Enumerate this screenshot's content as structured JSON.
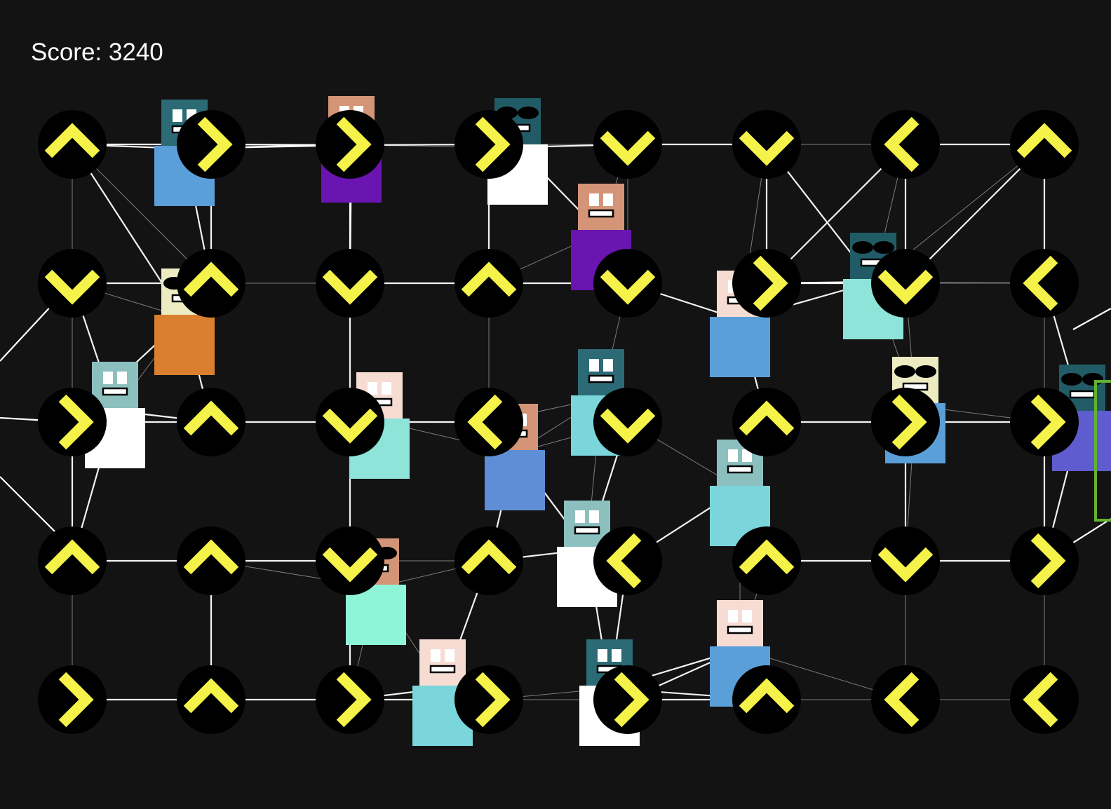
{
  "hud": {
    "score_label": "Score: ",
    "score_value": "3240"
  },
  "colors": {
    "background": "#131313",
    "button_fill": "#000000",
    "arrow": "#f5f249",
    "link": "#ffffff",
    "goal_border": "#63b22e"
  },
  "grid": {
    "rows": 5,
    "cols": 8,
    "arrows": [
      [
        "up",
        "right",
        "right",
        "right",
        "down",
        "down",
        "left",
        "up"
      ],
      [
        "down",
        "up",
        "down",
        "up",
        "down",
        "right",
        "down",
        "left"
      ],
      [
        "right",
        "up",
        "down",
        "left",
        "down",
        "up",
        "right",
        "right"
      ],
      [
        "up",
        "up",
        "down",
        "up",
        "left",
        "up",
        "down",
        "right"
      ],
      [
        "right",
        "up",
        "right",
        "right",
        "right",
        "up",
        "left",
        "left"
      ]
    ]
  },
  "characters": [
    {
      "id": "c1",
      "head": "#2c6a75",
      "body": "#5a9fd8",
      "face": "plain",
      "ball": true
    },
    {
      "id": "c2",
      "head": "#d49477",
      "body": "#6a14b1",
      "face": "plain",
      "ball": true
    },
    {
      "id": "c3",
      "head": "#215c66",
      "body": "#ffffff",
      "face": "shades",
      "ball": false
    },
    {
      "id": "c4",
      "head": "#d49477",
      "body": "#6a14b1",
      "face": "plain",
      "ball": true
    },
    {
      "id": "c5",
      "head": "#ecebc2",
      "body": "#d97f2f",
      "face": "shades",
      "ball": true
    },
    {
      "id": "c6",
      "head": "#215c66",
      "body": "#8ee4d8",
      "face": "shades",
      "ball": true
    },
    {
      "id": "c7",
      "head": "#f7dcd4",
      "body": "#5a9fd8",
      "face": "plain",
      "ball": true
    },
    {
      "id": "c8",
      "head": "#8bc0bf",
      "body": "#ffffff",
      "face": "plain",
      "ball": false
    },
    {
      "id": "c9",
      "head": "#f7dcd4",
      "body": "#8ee4d8",
      "face": "plain",
      "ball": true
    },
    {
      "id": "c10",
      "head": "#2c6a75",
      "body": "#7ad6db",
      "face": "plain",
      "ball": true
    },
    {
      "id": "c11",
      "head": "#d49477",
      "body": "#5e8fd6",
      "face": "plain",
      "ball": true
    },
    {
      "id": "c12",
      "head": "#ecebc2",
      "body": "#5a9fd8",
      "face": "shades",
      "ball": true
    },
    {
      "id": "c13",
      "head": "#215c66",
      "body": "#5e5ccf",
      "face": "shades",
      "ball": false
    },
    {
      "id": "c14",
      "head": "#8bc0bf",
      "body": "#7ad6db",
      "face": "plain",
      "ball": true
    },
    {
      "id": "c15",
      "head": "#8bc0bf",
      "body": "#ffffff",
      "face": "plain",
      "ball": false
    },
    {
      "id": "c16",
      "head": "#d49477",
      "body": "#8ff5d8",
      "face": "shades",
      "ball": true
    },
    {
      "id": "c17",
      "head": "#f7dcd4",
      "body": "#7ad6db",
      "face": "plain",
      "ball": true
    },
    {
      "id": "c18",
      "head": "#2c6a75",
      "body": "#ffffff",
      "face": "plain",
      "ball": true
    },
    {
      "id": "c19",
      "head": "#f7dcd4",
      "body": "#5a9fd8",
      "face": "plain",
      "ball": true
    }
  ]
}
